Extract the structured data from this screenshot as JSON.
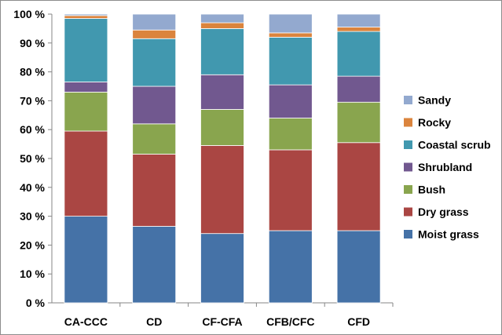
{
  "chart_data": {
    "type": "bar",
    "stacked": true,
    "percent": true,
    "title": "",
    "xlabel": "",
    "ylabel": "",
    "ylim": [
      0,
      100
    ],
    "y_ticks": [
      "0 %",
      "10 %",
      "20 %",
      "30 %",
      "40 %",
      "50 %",
      "60 %",
      "70 %",
      "80 %",
      "90 %",
      "100 %"
    ],
    "grid": false,
    "legend_position": "right",
    "categories": [
      "CA-CCC",
      "CD",
      "CF-CFA",
      "CFB/CFC",
      "CFD"
    ],
    "series": [
      {
        "name": "Moist grass",
        "color": "#4572A7",
        "values": [
          30,
          26.5,
          24,
          25,
          25
        ]
      },
      {
        "name": "Dry grass",
        "color": "#AA4643",
        "values": [
          29.5,
          25,
          30.5,
          28,
          30.5
        ]
      },
      {
        "name": "Bush",
        "color": "#89A54E",
        "values": [
          13.5,
          10.5,
          12.5,
          11,
          14
        ]
      },
      {
        "name": "Shrubland",
        "color": "#71588F",
        "values": [
          3.5,
          13,
          12,
          11.5,
          9
        ]
      },
      {
        "name": "Coastal scrub",
        "color": "#4198AF",
        "values": [
          22,
          16.5,
          16,
          16.5,
          15.5
        ]
      },
      {
        "name": "Rocky",
        "color": "#DB843D",
        "values": [
          1,
          3,
          2,
          1.5,
          1.5
        ]
      },
      {
        "name": "Sandy",
        "color": "#93A9CF",
        "values": [
          0.5,
          5.5,
          3,
          6.5,
          4.5
        ]
      }
    ],
    "legend_order": [
      "Sandy",
      "Rocky",
      "Coastal scrub",
      "Shrubland",
      "Bush",
      "Dry grass",
      "Moist grass"
    ]
  }
}
